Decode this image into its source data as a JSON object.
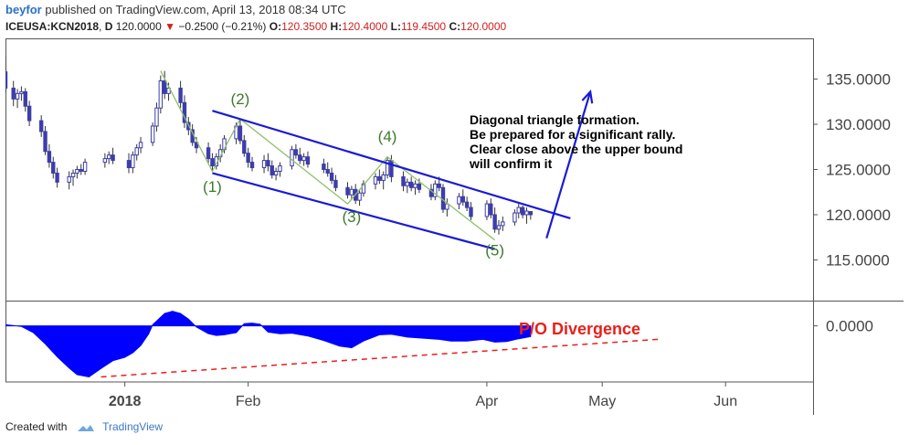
{
  "header": {
    "author": "beyfor",
    "published_text": "published on TradingView.com, April 13, 2018 08:34 UTC",
    "symbol": "ICEUSA:KCN2018",
    "interval": "D",
    "last": "120.0000",
    "change": "−0.2500 (−0.21%)",
    "change_icon": "down-triangle",
    "open_label": "O:",
    "open": "120.3500",
    "high_label": "H:",
    "high": "120.4000",
    "low_label": "L:",
    "low": "119.4500",
    "close_label": "C:",
    "close": "120.0000"
  },
  "footer": {
    "created_with": "Created with",
    "brand": "TradingView",
    "logo_icon": "tradingview-cloud-icon"
  },
  "colors": {
    "candle": "#3d3daa",
    "channel": "#1a1ad6",
    "wave_line": "#8fbf6a",
    "wave_label": "#3c7a2a",
    "oscillator_fill": "#0000ff",
    "divergence": "#e8201a",
    "annotation_text": "#000000"
  },
  "chart_data": {
    "type": "candlestick",
    "price_axis": {
      "ylim": [
        110.5,
        139.5
      ],
      "tick_labels": [
        "135.0000",
        "130.0000",
        "125.0000",
        "120.0000",
        "115.0000"
      ],
      "tick_values": [
        135,
        130,
        125,
        120,
        115
      ]
    },
    "oscillator_axis": {
      "tick_labels": [
        "0.0000"
      ],
      "tick_values": [
        0
      ],
      "ylim": [
        -1.0,
        0.45
      ]
    },
    "time_axis": {
      "labels": [
        "2018",
        "Feb",
        "Apr",
        "May",
        "Jun"
      ],
      "label_dates": [
        "2018-01-01",
        "2018-02-01",
        "2018-04-02",
        "2018-05-01",
        "2018-06-01"
      ],
      "bold": [
        "2018"
      ],
      "range": [
        "2017-12-02",
        "2018-06-23"
      ]
    },
    "candles": [
      {
        "date": "2017-12-02",
        "o": 135.8,
        "h": 137.5,
        "l": 133.5,
        "c": 134.0
      },
      {
        "date": "2017-12-04",
        "o": 134.0,
        "h": 134.8,
        "l": 132.0,
        "c": 132.8
      },
      {
        "date": "2017-12-05",
        "o": 132.8,
        "h": 133.9,
        "l": 131.8,
        "c": 133.4
      },
      {
        "date": "2017-12-06",
        "o": 133.4,
        "h": 134.2,
        "l": 132.6,
        "c": 133.6
      },
      {
        "date": "2017-12-07",
        "o": 133.6,
        "h": 134.0,
        "l": 131.4,
        "c": 132.0
      },
      {
        "date": "2017-12-08",
        "o": 132.0,
        "h": 132.6,
        "l": 129.8,
        "c": 130.4
      },
      {
        "date": "2017-12-11",
        "o": 130.4,
        "h": 131.0,
        "l": 128.6,
        "c": 129.2
      },
      {
        "date": "2017-12-12",
        "o": 129.2,
        "h": 129.8,
        "l": 126.6,
        "c": 127.0
      },
      {
        "date": "2017-12-13",
        "o": 127.0,
        "h": 127.8,
        "l": 125.2,
        "c": 125.8
      },
      {
        "date": "2017-12-14",
        "o": 125.8,
        "h": 126.4,
        "l": 124.0,
        "c": 124.6
      },
      {
        "date": "2017-12-15",
        "o": 124.6,
        "h": 125.2,
        "l": 123.0,
        "c": 123.6
      },
      {
        "date": "2017-12-18",
        "o": 123.6,
        "h": 124.8,
        "l": 122.8,
        "c": 124.2
      },
      {
        "date": "2017-12-19",
        "o": 124.2,
        "h": 125.0,
        "l": 123.2,
        "c": 124.6
      },
      {
        "date": "2017-12-20",
        "o": 124.6,
        "h": 125.4,
        "l": 124.0,
        "c": 125.0
      },
      {
        "date": "2017-12-21",
        "o": 125.0,
        "h": 125.6,
        "l": 124.4,
        "c": 124.8
      },
      {
        "date": "2017-12-22",
        "o": 124.8,
        "h": 126.2,
        "l": 124.4,
        "c": 125.8
      },
      {
        "date": "2017-12-27",
        "o": 125.8,
        "h": 126.8,
        "l": 125.2,
        "c": 126.2
      },
      {
        "date": "2017-12-28",
        "o": 126.2,
        "h": 127.0,
        "l": 125.6,
        "c": 126.6
      },
      {
        "date": "2017-12-29",
        "o": 126.6,
        "h": 127.4,
        "l": 125.6,
        "c": 126.0
      },
      {
        "date": "2018-01-02",
        "o": 126.0,
        "h": 126.8,
        "l": 124.6,
        "c": 125.2
      },
      {
        "date": "2018-01-03",
        "o": 125.2,
        "h": 127.0,
        "l": 124.6,
        "c": 126.6
      },
      {
        "date": "2018-01-04",
        "o": 126.6,
        "h": 127.8,
        "l": 126.0,
        "c": 127.4
      },
      {
        "date": "2018-01-05",
        "o": 127.4,
        "h": 128.6,
        "l": 126.8,
        "c": 128.0
      },
      {
        "date": "2018-01-08",
        "o": 128.0,
        "h": 130.2,
        "l": 127.6,
        "c": 129.8
      },
      {
        "date": "2018-01-09",
        "o": 129.8,
        "h": 132.4,
        "l": 129.2,
        "c": 131.8
      },
      {
        "date": "2018-01-10",
        "o": 131.8,
        "h": 135.4,
        "l": 131.2,
        "c": 134.8
      },
      {
        "date": "2018-01-11",
        "o": 134.8,
        "h": 135.9,
        "l": 132.8,
        "c": 133.4
      },
      {
        "date": "2018-01-12",
        "o": 133.4,
        "h": 134.6,
        "l": 132.6,
        "c": 134.0
      },
      {
        "date": "2018-01-15",
        "o": 134.0,
        "h": 134.8,
        "l": 131.8,
        "c": 132.4
      },
      {
        "date": "2018-01-16",
        "o": 132.4,
        "h": 133.2,
        "l": 129.6,
        "c": 130.2
      },
      {
        "date": "2018-01-17",
        "o": 130.2,
        "h": 130.8,
        "l": 128.8,
        "c": 129.4
      },
      {
        "date": "2018-01-18",
        "o": 129.4,
        "h": 130.0,
        "l": 127.6,
        "c": 128.0
      },
      {
        "date": "2018-01-19",
        "o": 128.0,
        "h": 128.6,
        "l": 126.8,
        "c": 127.4
      },
      {
        "date": "2018-01-22",
        "o": 127.4,
        "h": 128.0,
        "l": 125.6,
        "c": 126.2
      },
      {
        "date": "2018-01-23",
        "o": 126.2,
        "h": 126.8,
        "l": 124.8,
        "c": 125.4
      },
      {
        "date": "2018-01-24",
        "o": 125.4,
        "h": 126.8,
        "l": 125.0,
        "c": 126.4
      },
      {
        "date": "2018-01-25",
        "o": 126.4,
        "h": 127.8,
        "l": 125.8,
        "c": 127.2
      },
      {
        "date": "2018-01-26",
        "o": 127.2,
        "h": 128.8,
        "l": 126.8,
        "c": 128.4
      },
      {
        "date": "2018-01-29",
        "o": 128.4,
        "h": 130.2,
        "l": 127.8,
        "c": 129.8
      },
      {
        "date": "2018-01-30",
        "o": 129.8,
        "h": 130.6,
        "l": 127.8,
        "c": 128.2
      },
      {
        "date": "2018-01-31",
        "o": 128.2,
        "h": 128.8,
        "l": 126.4,
        "c": 126.8
      },
      {
        "date": "2018-02-01",
        "o": 126.8,
        "h": 127.4,
        "l": 125.2,
        "c": 125.8
      },
      {
        "date": "2018-02-02",
        "o": 125.8,
        "h": 126.4,
        "l": 124.8,
        "c": 125.2
      },
      {
        "date": "2018-02-05",
        "o": 125.2,
        "h": 126.6,
        "l": 124.6,
        "c": 126.0
      },
      {
        "date": "2018-02-06",
        "o": 126.0,
        "h": 126.8,
        "l": 124.8,
        "c": 125.4
      },
      {
        "date": "2018-02-07",
        "o": 125.4,
        "h": 126.0,
        "l": 124.0,
        "c": 124.4
      },
      {
        "date": "2018-02-08",
        "o": 124.4,
        "h": 125.2,
        "l": 123.8,
        "c": 124.8
      },
      {
        "date": "2018-02-09",
        "o": 124.8,
        "h": 125.8,
        "l": 124.2,
        "c": 125.4
      },
      {
        "date": "2018-02-12",
        "o": 125.4,
        "h": 127.6,
        "l": 125.0,
        "c": 127.2
      },
      {
        "date": "2018-02-13",
        "o": 127.2,
        "h": 127.8,
        "l": 126.2,
        "c": 126.6
      },
      {
        "date": "2018-02-14",
        "o": 126.6,
        "h": 127.4,
        "l": 125.6,
        "c": 126.0
      },
      {
        "date": "2018-02-15",
        "o": 126.0,
        "h": 126.8,
        "l": 125.4,
        "c": 126.4
      },
      {
        "date": "2018-02-16",
        "o": 126.4,
        "h": 127.0,
        "l": 125.2,
        "c": 125.6
      },
      {
        "date": "2018-02-20",
        "o": 125.6,
        "h": 126.2,
        "l": 124.6,
        "c": 125.0
      },
      {
        "date": "2018-02-21",
        "o": 125.0,
        "h": 125.8,
        "l": 124.2,
        "c": 124.6
      },
      {
        "date": "2018-02-22",
        "o": 124.6,
        "h": 125.2,
        "l": 123.4,
        "c": 123.8
      },
      {
        "date": "2018-02-23",
        "o": 123.8,
        "h": 124.4,
        "l": 122.6,
        "c": 123.0
      },
      {
        "date": "2018-02-26",
        "o": 123.0,
        "h": 123.6,
        "l": 121.8,
        "c": 122.2
      },
      {
        "date": "2018-02-27",
        "o": 122.2,
        "h": 123.2,
        "l": 121.6,
        "c": 122.8
      },
      {
        "date": "2018-02-28",
        "o": 122.8,
        "h": 123.4,
        "l": 121.2,
        "c": 121.6
      },
      {
        "date": "2018-03-01",
        "o": 121.6,
        "h": 122.8,
        "l": 121.0,
        "c": 122.4
      },
      {
        "date": "2018-03-02",
        "o": 122.4,
        "h": 123.8,
        "l": 122.0,
        "c": 123.4
      },
      {
        "date": "2018-03-05",
        "o": 123.4,
        "h": 124.6,
        "l": 122.8,
        "c": 124.2
      },
      {
        "date": "2018-03-06",
        "o": 124.2,
        "h": 125.0,
        "l": 123.4,
        "c": 123.8
      },
      {
        "date": "2018-03-07",
        "o": 123.8,
        "h": 124.8,
        "l": 122.8,
        "c": 124.4
      },
      {
        "date": "2018-03-08",
        "o": 124.4,
        "h": 126.4,
        "l": 124.0,
        "c": 126.0
      },
      {
        "date": "2018-03-09",
        "o": 126.0,
        "h": 126.6,
        "l": 123.6,
        "c": 124.2
      },
      {
        "date": "2018-03-12",
        "o": 124.2,
        "h": 124.8,
        "l": 122.6,
        "c": 123.2
      },
      {
        "date": "2018-03-13",
        "o": 123.2,
        "h": 124.0,
        "l": 122.4,
        "c": 123.6
      },
      {
        "date": "2018-03-14",
        "o": 123.6,
        "h": 124.2,
        "l": 122.6,
        "c": 123.0
      },
      {
        "date": "2018-03-15",
        "o": 123.0,
        "h": 123.8,
        "l": 122.2,
        "c": 123.4
      },
      {
        "date": "2018-03-16",
        "o": 123.4,
        "h": 124.0,
        "l": 122.4,
        "c": 122.8
      },
      {
        "date": "2018-03-19",
        "o": 122.8,
        "h": 123.4,
        "l": 121.6,
        "c": 122.0
      },
      {
        "date": "2018-03-20",
        "o": 122.0,
        "h": 123.8,
        "l": 121.6,
        "c": 123.4
      },
      {
        "date": "2018-03-21",
        "o": 123.4,
        "h": 124.2,
        "l": 122.6,
        "c": 123.0
      },
      {
        "date": "2018-03-22",
        "o": 123.0,
        "h": 123.4,
        "l": 120.2,
        "c": 120.6
      },
      {
        "date": "2018-03-23",
        "o": 120.6,
        "h": 121.8,
        "l": 119.8,
        "c": 121.2
      },
      {
        "date": "2018-03-26",
        "o": 121.2,
        "h": 122.4,
        "l": 120.6,
        "c": 122.0
      },
      {
        "date": "2018-03-27",
        "o": 122.0,
        "h": 122.8,
        "l": 121.0,
        "c": 121.4
      },
      {
        "date": "2018-03-28",
        "o": 121.4,
        "h": 122.0,
        "l": 120.4,
        "c": 120.8
      },
      {
        "date": "2018-03-29",
        "o": 120.8,
        "h": 121.4,
        "l": 119.4,
        "c": 119.8
      },
      {
        "date": "2018-04-02",
        "o": 119.8,
        "h": 121.6,
        "l": 119.4,
        "c": 121.2
      },
      {
        "date": "2018-04-03",
        "o": 121.2,
        "h": 121.8,
        "l": 119.6,
        "c": 120.0
      },
      {
        "date": "2018-04-04",
        "o": 120.0,
        "h": 120.8,
        "l": 118.0,
        "c": 118.4
      },
      {
        "date": "2018-04-05",
        "o": 118.4,
        "h": 119.4,
        "l": 117.8,
        "c": 118.8
      },
      {
        "date": "2018-04-06",
        "o": 118.8,
        "h": 119.8,
        "l": 118.2,
        "c": 119.2
      },
      {
        "date": "2018-04-09",
        "o": 119.2,
        "h": 120.6,
        "l": 118.8,
        "c": 120.2
      },
      {
        "date": "2018-04-10",
        "o": 120.2,
        "h": 121.2,
        "l": 119.6,
        "c": 120.8
      },
      {
        "date": "2018-04-11",
        "o": 120.8,
        "h": 121.0,
        "l": 119.6,
        "c": 120.0
      },
      {
        "date": "2018-04-12",
        "o": 120.0,
        "h": 120.8,
        "l": 119.0,
        "c": 120.4
      },
      {
        "date": "2018-04-13",
        "o": 120.35,
        "h": 120.4,
        "l": 119.45,
        "c": 120.0
      }
    ],
    "wave_labels": [
      {
        "text": "(1)",
        "date": "2018-01-23",
        "price": 122.5
      },
      {
        "text": "(2)",
        "date": "2018-01-30",
        "price": 132.2
      },
      {
        "text": "(3)",
        "date": "2018-02-27",
        "price": 119.2
      },
      {
        "text": "(4)",
        "date": "2018-03-08",
        "price": 128.1
      },
      {
        "text": "(5)",
        "date": "2018-04-04",
        "price": 115.5
      }
    ],
    "wave_path": [
      {
        "date": "2018-01-10",
        "price": 135.9
      },
      {
        "date": "2018-01-23",
        "price": 124.8
      },
      {
        "date": "2018-01-30",
        "price": 130.6
      },
      {
        "date": "2018-02-26",
        "price": 121.2
      },
      {
        "date": "2018-03-08",
        "price": 126.4
      },
      {
        "date": "2018-04-04",
        "price": 117.2
      }
    ],
    "upper_bound": [
      {
        "date": "2018-01-23",
        "price": 131.5
      },
      {
        "date": "2018-04-23",
        "price": 119.6
      }
    ],
    "lower_bound": [
      {
        "date": "2018-01-23",
        "price": 124.6
      },
      {
        "date": "2018-04-04",
        "price": 116.2
      }
    ],
    "breakout_arrow": [
      {
        "date": "2018-04-17",
        "price": 117.4
      },
      {
        "date": "2018-04-28",
        "price": 133.6
      }
    ],
    "annotation": [
      "Diagonal triangle formation.",
      "Be prepared for a significant rally.",
      "Clear close above the upper bound",
      "will confirm it"
    ],
    "oscillator_label": "P/O Divergence",
    "oscillator": [
      {
        "date": "2017-12-02",
        "v": 0.02
      },
      {
        "date": "2017-12-06",
        "v": -0.01
      },
      {
        "date": "2017-12-09",
        "v": -0.12
      },
      {
        "date": "2017-12-12",
        "v": -0.32
      },
      {
        "date": "2017-12-15",
        "v": -0.55
      },
      {
        "date": "2017-12-18",
        "v": -0.75
      },
      {
        "date": "2017-12-20",
        "v": -0.87
      },
      {
        "date": "2017-12-23",
        "v": -0.91
      },
      {
        "date": "2017-12-26",
        "v": -0.76
      },
      {
        "date": "2017-12-29",
        "v": -0.62
      },
      {
        "date": "2018-01-01",
        "v": -0.56
      },
      {
        "date": "2018-01-03",
        "v": -0.48
      },
      {
        "date": "2018-01-05",
        "v": -0.35
      },
      {
        "date": "2018-01-07",
        "v": -0.14
      },
      {
        "date": "2018-01-08",
        "v": 0.02
      },
      {
        "date": "2018-01-11",
        "v": 0.22
      },
      {
        "date": "2018-01-13",
        "v": 0.26
      },
      {
        "date": "2018-01-15",
        "v": 0.22
      },
      {
        "date": "2018-01-17",
        "v": 0.12
      },
      {
        "date": "2018-01-19",
        "v": -0.02
      },
      {
        "date": "2018-01-22",
        "v": -0.14
      },
      {
        "date": "2018-01-24",
        "v": -0.17
      },
      {
        "date": "2018-01-26",
        "v": -0.16
      },
      {
        "date": "2018-01-29",
        "v": -0.12
      },
      {
        "date": "2018-01-31",
        "v": 0.04
      },
      {
        "date": "2018-02-02",
        "v": 0.05
      },
      {
        "date": "2018-02-04",
        "v": 0.03
      },
      {
        "date": "2018-02-06",
        "v": -0.11
      },
      {
        "date": "2018-02-09",
        "v": -0.14
      },
      {
        "date": "2018-02-12",
        "v": -0.13
      },
      {
        "date": "2018-02-16",
        "v": -0.18
      },
      {
        "date": "2018-02-20",
        "v": -0.26
      },
      {
        "date": "2018-02-24",
        "v": -0.36
      },
      {
        "date": "2018-02-27",
        "v": -0.39
      },
      {
        "date": "2018-03-02",
        "v": -0.27
      },
      {
        "date": "2018-03-06",
        "v": -0.16
      },
      {
        "date": "2018-03-09",
        "v": -0.15
      },
      {
        "date": "2018-03-13",
        "v": -0.2
      },
      {
        "date": "2018-03-17",
        "v": -0.22
      },
      {
        "date": "2018-03-21",
        "v": -0.24
      },
      {
        "date": "2018-03-24",
        "v": -0.27
      },
      {
        "date": "2018-03-28",
        "v": -0.27
      },
      {
        "date": "2018-04-01",
        "v": -0.24
      },
      {
        "date": "2018-04-04",
        "v": -0.29
      },
      {
        "date": "2018-04-07",
        "v": -0.28
      },
      {
        "date": "2018-04-10",
        "v": -0.23
      },
      {
        "date": "2018-04-13",
        "v": -0.19
      }
    ],
    "divergence_line": [
      {
        "date": "2017-12-26",
        "v": -0.91
      },
      {
        "date": "2018-05-15",
        "v": -0.24
      }
    ]
  }
}
